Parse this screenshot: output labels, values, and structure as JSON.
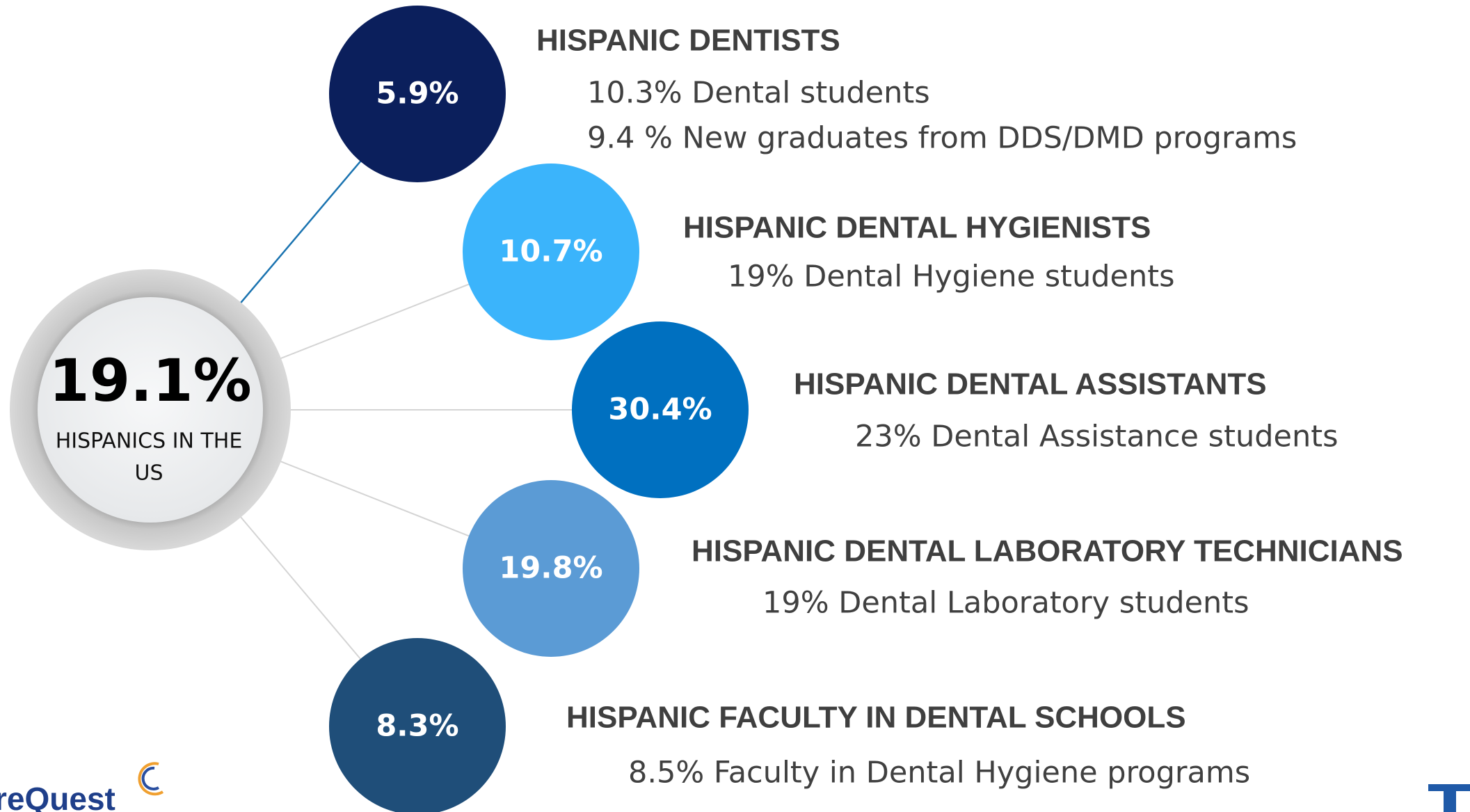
{
  "center": {
    "value": "19.1%",
    "label_lines": [
      "HISPANICS IN THE",
      "US"
    ]
  },
  "items": [
    {
      "value": "5.9%",
      "color": "#0b1f5c",
      "heading": "HISPANIC DENTISTS",
      "lines": [
        "10.3% Dental students",
        "9.4 % New graduates from DDS/DMD programs"
      ]
    },
    {
      "value": "10.7%",
      "color": "#3bb4fb",
      "heading": "HISPANIC DENTAL HYGIENISTS",
      "lines": [
        "19% Dental Hygiene students"
      ]
    },
    {
      "value": "30.4%",
      "color": "#0070c0",
      "heading": "HISPANIC DENTAL ASSISTANTS",
      "lines": [
        "23% Dental Assistance students"
      ]
    },
    {
      "value": "19.8%",
      "color": "#5b9bd5",
      "heading": "HISPANIC DENTAL LABORATORY TECHNICIANS",
      "lines": [
        "19% Dental Laboratory students"
      ]
    },
    {
      "value": "8.3%",
      "color": "#1f4e79",
      "heading": "HISPANIC FACULTY IN DENTAL SCHOOLS",
      "lines": [
        "8.5% Faculty in Dental Hygiene programs"
      ]
    }
  ],
  "logo": "reQuest"
}
